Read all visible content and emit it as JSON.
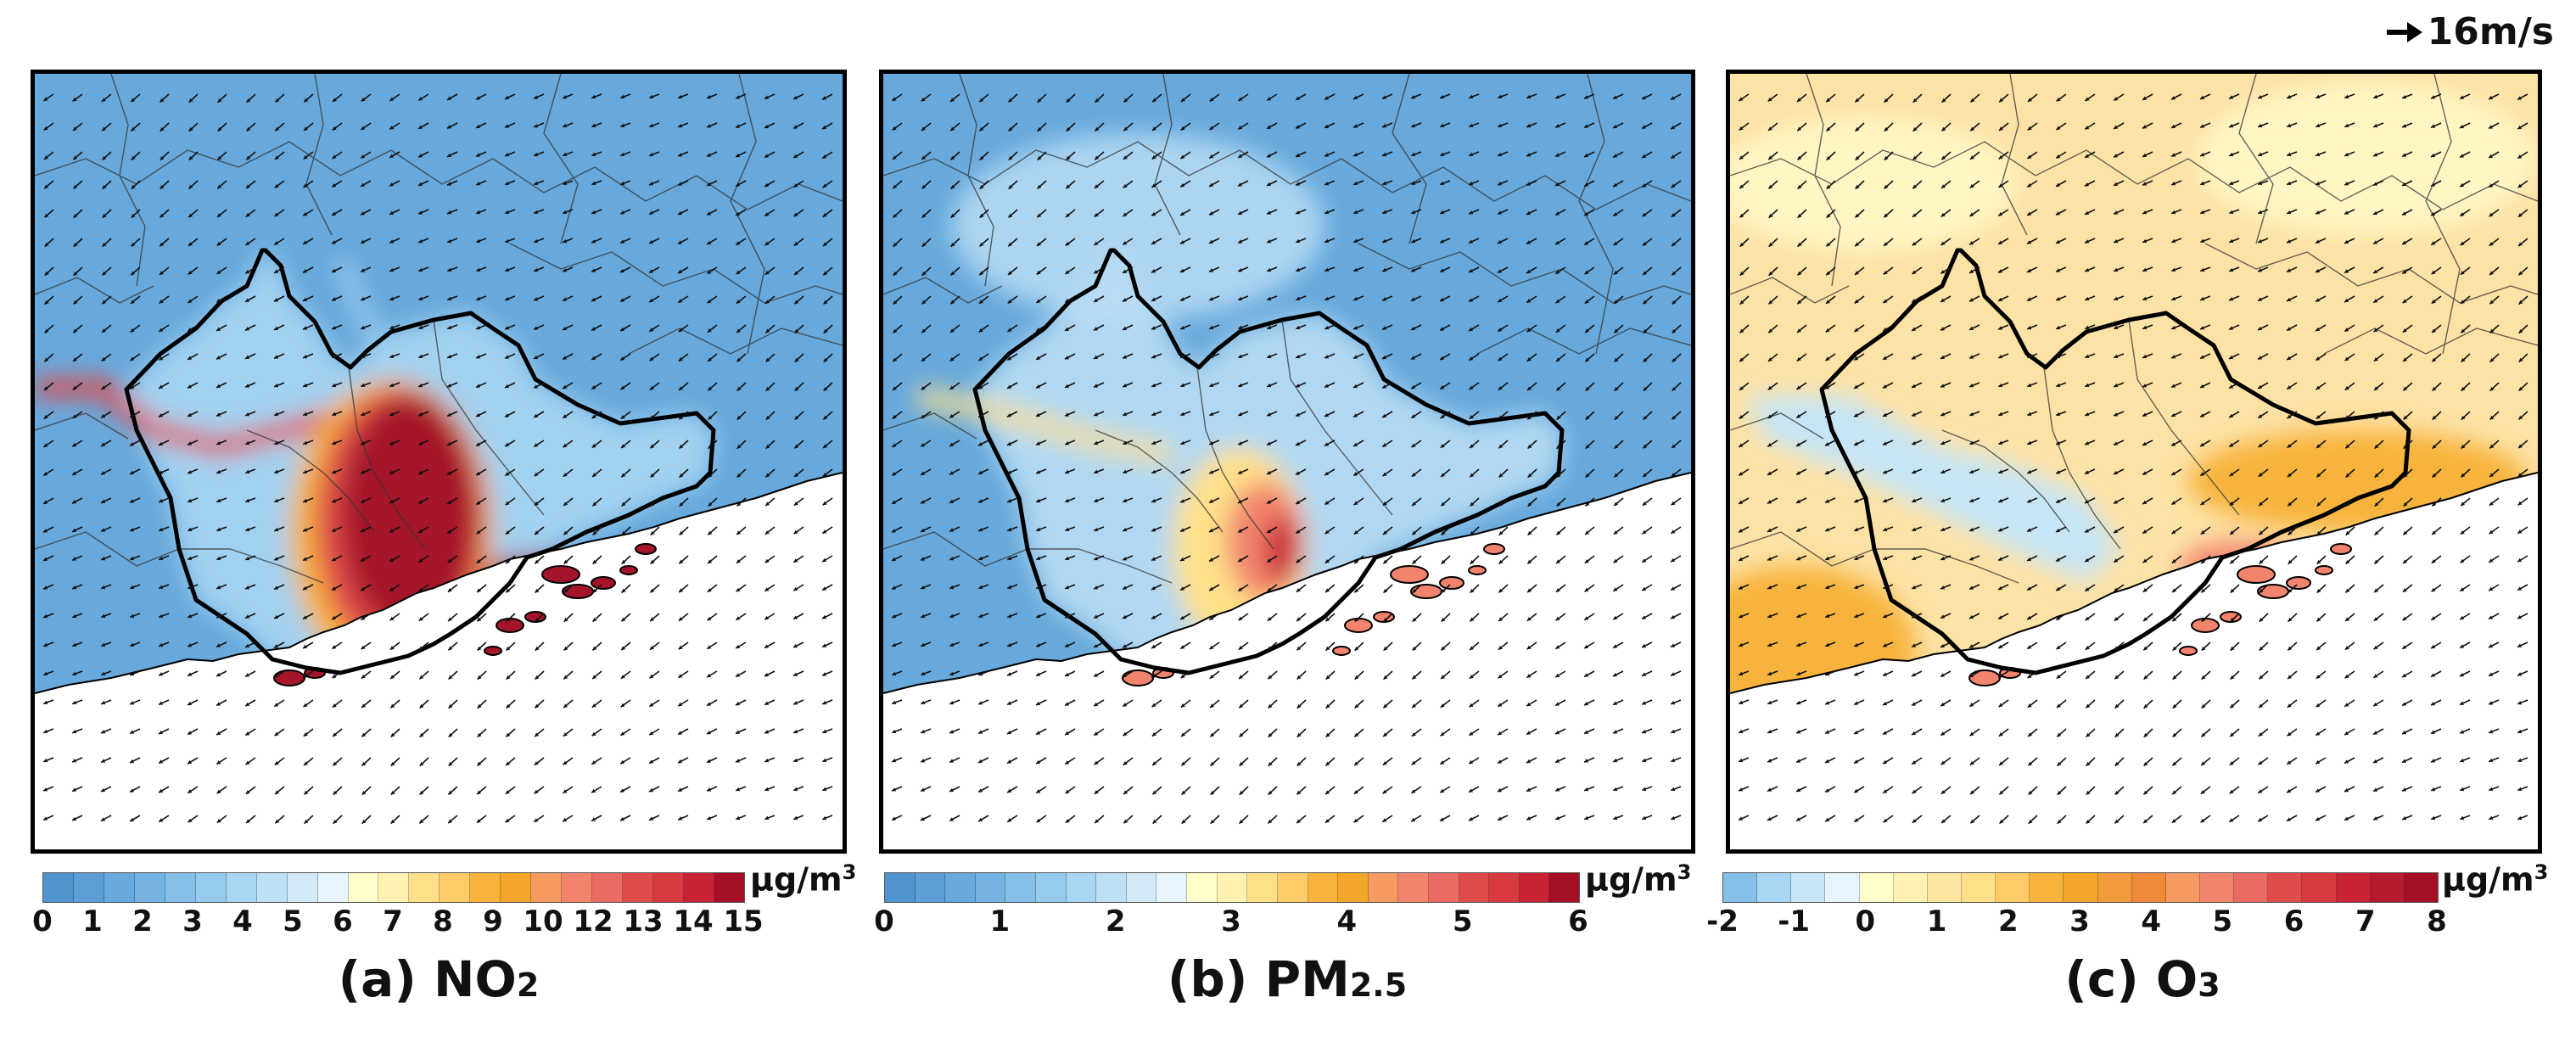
{
  "wind_reference": {
    "label": "16m/s",
    "icon": "arrow-right-icon"
  },
  "panels": [
    {
      "id": "a",
      "caption_prefix": "(a) NO",
      "caption_sub": "2",
      "unit": "μg/m",
      "unit_sup": "3",
      "colorbar": {
        "colors": [
          "#4f93cf",
          "#5b9fd6",
          "#67a9dc",
          "#75b4e2",
          "#86c0e8",
          "#97cbee",
          "#a9d6f3",
          "#bde0f6",
          "#d2eaf8",
          "#e8f4fb",
          "#ffffcc",
          "#fff2b0",
          "#ffe08a",
          "#fdcc66",
          "#f7b33a",
          "#f3a72a",
          "#f59a60",
          "#f2836d",
          "#e96b63",
          "#e04c4c",
          "#d83a3f",
          "#c92436",
          "#a50f25"
        ],
        "tick_labels": [
          "0",
          "1",
          "2",
          "3",
          "4",
          "5",
          "6",
          "7",
          "8",
          "9",
          "10",
          "12",
          "13",
          "14",
          "15"
        ]
      },
      "fill": {
        "background": "#67a9dc",
        "inner": "#a9d6f3",
        "hot_mid": "#f7b33a",
        "hot_high": "#e04c4c",
        "hot_peak": "#a5142a"
      }
    },
    {
      "id": "b",
      "caption_prefix": "(b) PM",
      "caption_sub": "2.5",
      "unit": "μg/m",
      "unit_sup": "3",
      "colorbar": {
        "colors": [
          "#4f93cf",
          "#5b9fd6",
          "#67a9dc",
          "#75b4e2",
          "#86c0e8",
          "#97cbee",
          "#a9d6f3",
          "#bde0f6",
          "#d2eaf8",
          "#e8f4fb",
          "#ffffcc",
          "#fff2b0",
          "#ffe08a",
          "#fdcc66",
          "#f7b33a",
          "#f3a72a",
          "#f59a60",
          "#f2836d",
          "#e96b63",
          "#e04c4c",
          "#d83a3f",
          "#c92436",
          "#a50f25"
        ],
        "tick_labels": [
          "0",
          "1",
          "2",
          "3",
          "4",
          "5",
          "6"
        ]
      },
      "fill": {
        "background": "#67a9dc",
        "inner": "#bde0f6",
        "hot_mid": "#ffe08a",
        "hot_high": "#f2836d",
        "hot_peak": "#c92436"
      }
    },
    {
      "id": "c",
      "caption_prefix": "(c) O",
      "caption_sub": "3",
      "unit": "μg/m",
      "unit_sup": "3",
      "colorbar": {
        "colors": [
          "#86c0e8",
          "#a9d6f3",
          "#c6e5f6",
          "#e8f4fb",
          "#ffffcc",
          "#fff2b0",
          "#ffe6a0",
          "#ffe08a",
          "#fdcc66",
          "#f7b33a",
          "#f3a72a",
          "#f39a3c",
          "#ee8a3a",
          "#f59a60",
          "#f2836d",
          "#e96b63",
          "#e04c4c",
          "#d83a3f",
          "#c92436",
          "#b51a2d",
          "#a50f25"
        ],
        "tick_labels": [
          "-2",
          "-1",
          "0",
          "1",
          "2",
          "3",
          "4",
          "5",
          "6",
          "7",
          "8"
        ]
      },
      "fill": {
        "background": "#fde2a6",
        "inner": "#c6e5f6",
        "hot_mid": "#f7b33a",
        "hot_high": "#f2836d",
        "hot_peak": "#d83a3f"
      }
    }
  ]
}
